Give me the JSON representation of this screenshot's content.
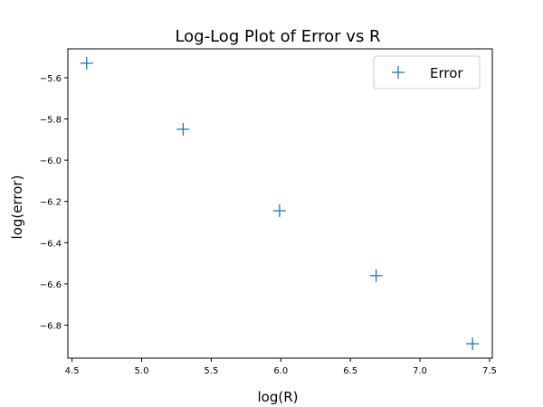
{
  "chart_data": {
    "type": "scatter",
    "title": "Log-Log Plot of Error vs R",
    "xlabel": "log(R)",
    "ylabel": "log(error)",
    "xlim": [
      4.47,
      7.52
    ],
    "ylim": [
      -6.96,
      -5.46
    ],
    "xticks": [
      4.5,
      5.0,
      5.5,
      6.0,
      6.5,
      7.0,
      7.5
    ],
    "xtick_labels": [
      "4.5",
      "5.0",
      "5.5",
      "6.0",
      "6.5",
      "7.0",
      "7.5"
    ],
    "yticks": [
      -5.6,
      -5.8,
      -6.0,
      -6.2,
      -6.4,
      -6.6,
      -6.8
    ],
    "ytick_labels": [
      "−5.6",
      "−5.8",
      "−6.0",
      "−6.2",
      "−6.4",
      "−6.6",
      "−6.8"
    ],
    "grid": false,
    "legend": {
      "position": "top-right"
    },
    "series": [
      {
        "name": "Error",
        "marker": "plus",
        "color": "#1f77b4",
        "x": [
          4.605,
          5.298,
          5.991,
          6.685,
          7.378
        ],
        "y": [
          -5.53,
          -5.85,
          -6.245,
          -6.56,
          -6.89
        ]
      }
    ]
  }
}
